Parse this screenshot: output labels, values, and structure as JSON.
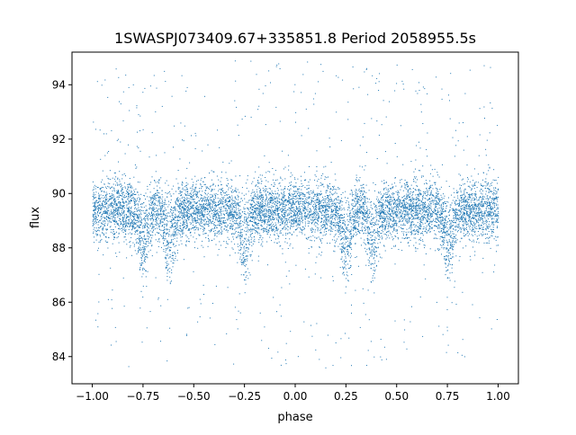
{
  "chart_data": {
    "type": "scatter",
    "title": "1SWASPJ073409.67+335851.8 Period 2058955.5s",
    "xlabel": "phase",
    "ylabel": "flux",
    "xlim": [
      -1.1,
      1.1
    ],
    "ylim": [
      83.0,
      95.2
    ],
    "xticks": [
      -1.0,
      -0.75,
      -0.5,
      -0.25,
      0.0,
      0.25,
      0.5,
      0.75,
      1.0
    ],
    "xtick_labels": [
      "−1.00",
      "−0.75",
      "−0.50",
      "−0.25",
      "0.00",
      "0.25",
      "0.50",
      "0.75",
      "1.00"
    ],
    "yticks": [
      84,
      86,
      88,
      90,
      92,
      94
    ],
    "ytick_labels": [
      "84",
      "86",
      "88",
      "90",
      "92",
      "94"
    ],
    "grid": false,
    "legend": "none",
    "marker_color": "#1f77b4",
    "series": [
      {
        "points_note": "dense photometric light curve, phase-folded and repeated over two cycles",
        "phase_range": [
          -1.0,
          1.0
        ],
        "flux_core_range": [
          87.5,
          90.5
        ],
        "flux_median": 89.4,
        "flux_full_range": [
          83.6,
          94.9
        ],
        "dips_at_phase": [
          -0.75,
          -0.62,
          -0.25,
          0.25,
          0.38,
          0.75
        ],
        "dip_depth": 87.0
      }
    ]
  }
}
